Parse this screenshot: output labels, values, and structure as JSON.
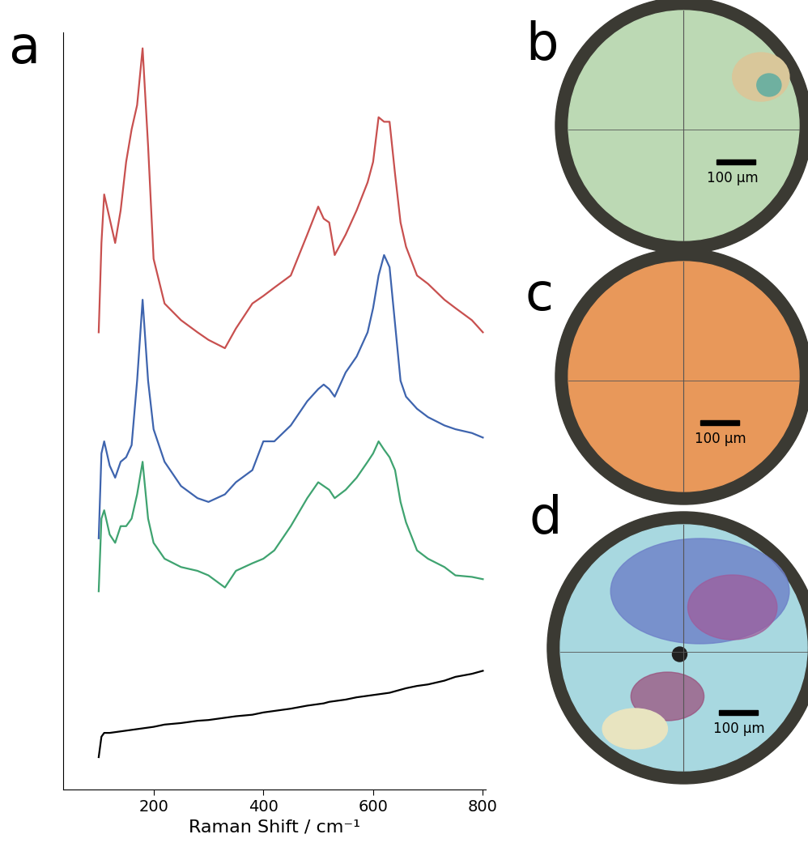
{
  "chart_data": {
    "type": "line",
    "panel_label": "a",
    "xlabel": "Raman Shift / cm⁻¹",
    "x": [
      100,
      105,
      110,
      120,
      130,
      140,
      150,
      160,
      170,
      180,
      190,
      200,
      220,
      250,
      280,
      300,
      330,
      350,
      380,
      400,
      420,
      450,
      480,
      500,
      510,
      520,
      530,
      550,
      570,
      590,
      600,
      610,
      620,
      630,
      640,
      650,
      660,
      680,
      700,
      730,
      750,
      780,
      800
    ],
    "series": [
      {
        "color": "#c8504f",
        "values": [
          60.4,
          72.2,
          78.6,
          75.4,
          72.2,
          76.5,
          82.9,
          87.2,
          90.4,
          97.9,
          85.0,
          70.1,
          64.2,
          62.0,
          60.4,
          59.4,
          58.3,
          60.9,
          64.2,
          65.2,
          66.3,
          67.9,
          73.3,
          77.0,
          75.4,
          74.9,
          70.6,
          73.3,
          76.5,
          80.2,
          82.9,
          88.8,
          88.2,
          88.2,
          81.3,
          74.9,
          71.7,
          67.9,
          66.8,
          64.7,
          63.6,
          62.0,
          60.4
        ]
      },
      {
        "color": "#3e64ae",
        "values": [
          33.2,
          44.4,
          46.0,
          42.8,
          41.2,
          43.3,
          43.9,
          45.5,
          54.0,
          64.7,
          54.0,
          47.6,
          43.3,
          40.1,
          38.5,
          38.0,
          39.0,
          40.6,
          42.2,
          46.0,
          46.0,
          48.1,
          51.3,
          52.9,
          53.5,
          52.9,
          51.9,
          55.1,
          57.2,
          60.4,
          63.6,
          67.9,
          70.6,
          69.0,
          61.5,
          54.0,
          51.9,
          50.3,
          49.2,
          48.1,
          47.6,
          47.1,
          46.5
        ]
      },
      {
        "color": "#3fa370",
        "values": [
          26.2,
          35.8,
          36.9,
          33.7,
          32.6,
          34.8,
          34.8,
          35.8,
          39.0,
          43.3,
          35.8,
          32.6,
          30.5,
          29.4,
          28.9,
          28.3,
          26.7,
          28.9,
          29.9,
          30.5,
          31.6,
          34.8,
          38.5,
          40.6,
          40.1,
          39.6,
          38.5,
          39.6,
          41.2,
          43.3,
          44.4,
          46.0,
          44.9,
          43.9,
          42.2,
          38.0,
          35.3,
          31.6,
          30.5,
          29.4,
          28.3,
          28.1,
          27.8
        ]
      },
      {
        "color": "#000000",
        "values": [
          4.3,
          7.0,
          7.5,
          7.5,
          7.6,
          7.7,
          7.8,
          7.9,
          8.0,
          8.1,
          8.2,
          8.3,
          8.6,
          8.8,
          9.1,
          9.2,
          9.5,
          9.7,
          9.9,
          10.2,
          10.4,
          10.7,
          11.1,
          11.3,
          11.4,
          11.6,
          11.7,
          11.9,
          12.2,
          12.4,
          12.5,
          12.6,
          12.7,
          12.8,
          13.0,
          13.2,
          13.4,
          13.7,
          13.9,
          14.4,
          14.9,
          15.3,
          15.7
        ]
      }
    ],
    "xlim": [
      35,
      805
    ],
    "ylim": [
      0,
      100
    ],
    "xticks": [
      200,
      400,
      600,
      800
    ],
    "tick_labels": "x"
  },
  "images": [
    {
      "label": "b",
      "scale_bar": "100 µm"
    },
    {
      "label": "c",
      "scale_bar": "100 µm"
    },
    {
      "label": "d",
      "scale_bar": "100 µm"
    }
  ]
}
